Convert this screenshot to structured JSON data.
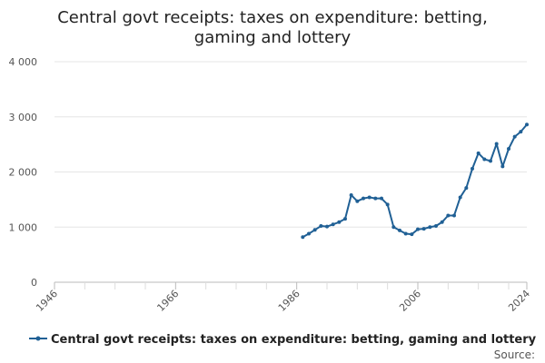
{
  "chart_data": {
    "type": "line",
    "title_lines": [
      "Central govt receipts: taxes on expenditure: betting,",
      "gaming and lottery"
    ],
    "xlabel": "",
    "ylabel": "",
    "xlim": [
      1946,
      2024
    ],
    "ylim": [
      0,
      4000
    ],
    "x_ticks": [
      1946,
      1966,
      1986,
      2006,
      2024
    ],
    "x_tick_labels": [
      "1946",
      "1966",
      "1986",
      "2006",
      "2024"
    ],
    "x_minor_ticks": [
      1951,
      1956,
      1961,
      1971,
      1976,
      1981,
      1991,
      1996,
      2001,
      2011,
      2016,
      2021
    ],
    "y_ticks": [
      0,
      1000,
      2000,
      3000,
      4000
    ],
    "y_tick_labels": [
      "0",
      "1 000",
      "2 000",
      "3 000",
      "4 000"
    ],
    "grid": true,
    "legend": "bottom",
    "color": "#206095",
    "series": [
      {
        "name": "Central govt receipts: taxes on expenditure: betting, gaming and lottery",
        "x": [
          1987,
          1988,
          1989,
          1990,
          1991,
          1992,
          1993,
          1994,
          1995,
          1996,
          1997,
          1998,
          1999,
          2000,
          2001,
          2002,
          2003,
          2004,
          2005,
          2006,
          2007,
          2008,
          2009,
          2010,
          2011,
          2012,
          2013,
          2014,
          2015,
          2016,
          2017,
          2018,
          2019,
          2020,
          2021,
          2022,
          2023,
          2024
        ],
        "values": [
          820,
          880,
          950,
          1020,
          1010,
          1050,
          1090,
          1150,
          1580,
          1470,
          1520,
          1540,
          1520,
          1520,
          1410,
          1000,
          940,
          880,
          870,
          960,
          970,
          1000,
          1020,
          1090,
          1210,
          1210,
          1540,
          1710,
          2060,
          2340,
          2230,
          2200,
          2510,
          2100,
          2420,
          2640,
          2730,
          2860
        ]
      }
    ],
    "source_label": "Source:"
  }
}
